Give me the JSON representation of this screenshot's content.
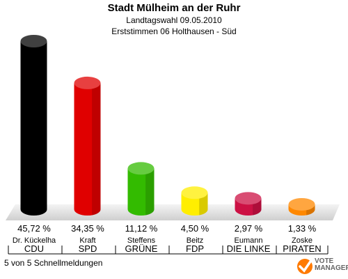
{
  "header": {
    "title": "Stadt Mülheim an der Ruhr",
    "subtitle1": "Landtagswahl 09.05.2010",
    "subtitle2": "Erststimmen 06 Holthausen - Süd"
  },
  "chart_data": {
    "type": "bar",
    "categories": [
      "CDU",
      "SPD",
      "GRÜNE",
      "FDP",
      "DIE LINKE",
      "PIRATEN"
    ],
    "candidates": [
      "Dr. Kückelha",
      "Kraft",
      "Steffens",
      "Beitz",
      "Eumann",
      "Zoske"
    ],
    "values": [
      45.72,
      34.35,
      11.12,
      4.5,
      2.97,
      1.33
    ],
    "value_labels": [
      "45,72 %",
      "34,35 %",
      "11,12 %",
      "4,50 %",
      "2,97 %",
      "1,33 %"
    ],
    "colors": [
      "#000000",
      "#e00000",
      "#33bb00",
      "#ffee00",
      "#cc1144",
      "#ff8800"
    ],
    "ylim": [
      0,
      50
    ]
  },
  "footer": {
    "status": "5 von 5 Schnellmeldungen"
  },
  "logo": {
    "line1": "VOTE",
    "line2": "MANAGER",
    "colors": {
      "accent": "#ff7a00",
      "text": "#666666"
    }
  }
}
